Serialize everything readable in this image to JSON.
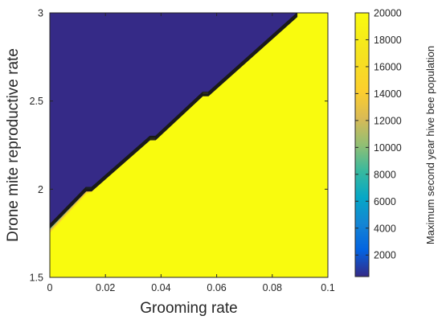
{
  "chart_data": {
    "type": "heatmap",
    "subtype": "filled-contour",
    "xlabel": "Grooming rate",
    "ylabel": "Drone mite reproductive rate",
    "xlim": [
      0,
      0.1
    ],
    "ylim": [
      1.5,
      3
    ],
    "x_ticks": [
      0,
      0.02,
      0.04,
      0.06,
      0.08,
      0.1
    ],
    "x_tick_labels": [
      "0",
      "0.02",
      "0.04",
      "0.06",
      "0.08",
      "0.1"
    ],
    "y_ticks": [
      1.5,
      2,
      2.5,
      3
    ],
    "y_tick_labels": [
      "1.5",
      "2",
      "2.5",
      "3"
    ],
    "colorbar": {
      "label": "Maximum second year hive bee population",
      "range": [
        400,
        20000
      ],
      "ticks": [
        2000,
        4000,
        6000,
        8000,
        10000,
        12000,
        14000,
        16000,
        18000,
        20000
      ],
      "tick_labels": [
        "2000",
        "4000",
        "6000",
        "8000",
        "10000",
        "12000",
        "14000",
        "16000",
        "18000",
        "20000"
      ],
      "colormap": "parula"
    },
    "regions": [
      {
        "name": "low",
        "value": 500,
        "color": "#352a87"
      },
      {
        "name": "high",
        "value": 20000,
        "color": "#f9fb0e"
      }
    ],
    "boundary": [
      {
        "x": 0,
        "y": 1.8
      },
      {
        "x": 0.013,
        "y": 2.01
      },
      {
        "x": 0.015,
        "y": 2.01
      },
      {
        "x": 0.036,
        "y": 2.3
      },
      {
        "x": 0.038,
        "y": 2.3
      },
      {
        "x": 0.055,
        "y": 2.55
      },
      {
        "x": 0.057,
        "y": 2.55
      },
      {
        "x": 0.089,
        "y": 3.0
      }
    ],
    "grid": false
  }
}
